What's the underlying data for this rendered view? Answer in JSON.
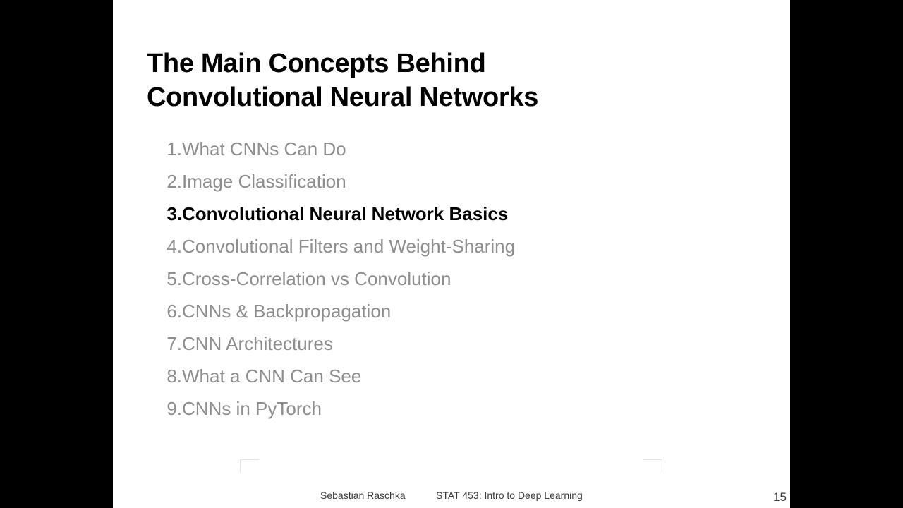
{
  "slide": {
    "title_line1": "The Main Concepts Behind",
    "title_line2": "Convolutional Neural Networks",
    "agenda": [
      {
        "number": "1.",
        "label": "What CNNs Can Do",
        "active": false
      },
      {
        "number": "2.",
        "label": "Image Classification",
        "active": false
      },
      {
        "number": "3.",
        "label": "Convolutional Neural Network Basics",
        "active": true
      },
      {
        "number": "4.",
        "label": "Convolutional Filters and Weight-Sharing",
        "active": false
      },
      {
        "number": "5.",
        "label": "Cross-Correlation vs Convolution",
        "active": false
      },
      {
        "number": "6.",
        "label": "CNNs & Backpropagation",
        "active": false
      },
      {
        "number": "7.",
        "label": "CNN Architectures",
        "active": false
      },
      {
        "number": "8.",
        "label": "What a CNN Can See",
        "active": false
      },
      {
        "number": "9.",
        "label": "CNNs in PyTorch",
        "active": false
      }
    ],
    "footer": {
      "author": "Sebastian Raschka",
      "course": "STAT 453: Intro to Deep Learning",
      "page_number": "15"
    }
  },
  "colors": {
    "active_text": "#000000",
    "inactive_text": "#8e8e8e",
    "background": "#ffffff",
    "letterbox": "#000000"
  }
}
